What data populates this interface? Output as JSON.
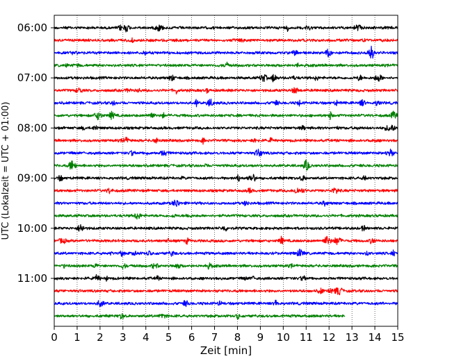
{
  "chart_data": {
    "type": "line",
    "subtype": "helicorder",
    "title": "",
    "xlabel": "Zeit  [min]",
    "ylabel": "UTC (Lokalzeit = UTC + 01:00)",
    "xlim": [
      0,
      15
    ],
    "x_ticks": [
      0,
      1,
      2,
      3,
      4,
      5,
      6,
      7,
      8,
      9,
      10,
      11,
      12,
      13,
      14,
      15
    ],
    "y_tick_labels": [
      "06:00",
      "07:00",
      "08:00",
      "09:00",
      "10:00",
      "11:00"
    ],
    "trace_interval_minutes": 15,
    "trace_count": 24,
    "last_trace_end_minute": 12.7,
    "trace_colors": [
      "#000000",
      "#ff0000",
      "#0000ff",
      "#008000"
    ],
    "grid": "vertical dotted lines at each minute",
    "legend": "none",
    "colors": {
      "axis": "#000000",
      "gridline": "#000000",
      "background": "#ffffff"
    }
  }
}
